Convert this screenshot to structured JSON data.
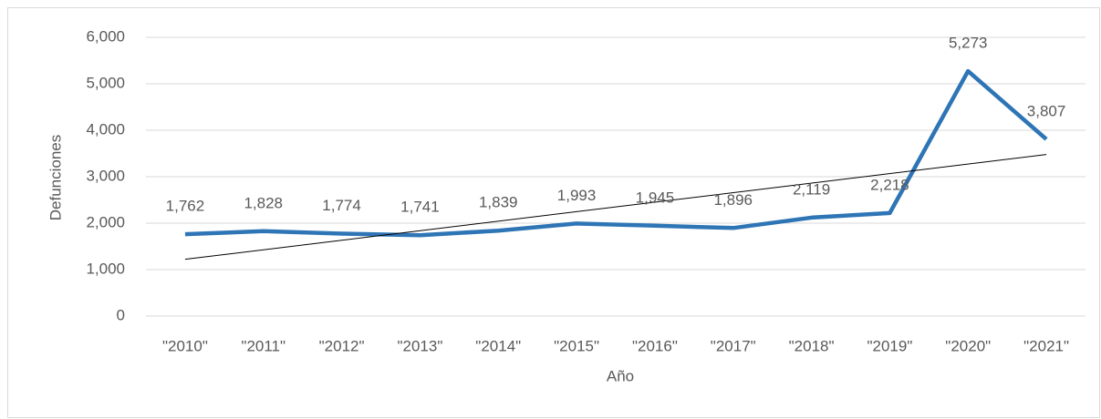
{
  "chart_data": {
    "type": "line",
    "categories": [
      "\"2010\"",
      "\"2011\"",
      "\"2012\"",
      "\"2013\"",
      "\"2014\"",
      "\"2015\"",
      "\"2016\"",
      "\"2017\"",
      "\"2018\"",
      "\"2019\"",
      "\"2020\"",
      "\"2021\""
    ],
    "series": [
      {
        "name": "Defunciones",
        "color": "#2e75b6",
        "values": [
          1762,
          1828,
          1774,
          1741,
          1839,
          1993,
          1945,
          1896,
          2119,
          2218,
          5273,
          3807
        ],
        "value_labels": [
          "1,762",
          "1,828",
          "1,774",
          "1,741",
          "1,839",
          "1,993",
          "1,945",
          "1,896",
          "2,119",
          "2,218",
          "5,273",
          "3,807"
        ]
      }
    ],
    "trendline": "linear",
    "trendline_color": "#000000",
    "xlabel": "Año",
    "ylabel": "Defunciones",
    "ylim": [
      0,
      6000
    ],
    "yticks": [
      0,
      {
        "value": 1000,
        "label": "1,000"
      },
      {
        "value": 2000,
        "label": "2,000"
      },
      {
        "value": 3000,
        "label": "3,000"
      },
      {
        "value": 4000,
        "label": "4,000"
      },
      {
        "value": 5000,
        "label": "5,000"
      },
      {
        "value": 6000,
        "label": "6,000"
      }
    ],
    "grid": true
  }
}
